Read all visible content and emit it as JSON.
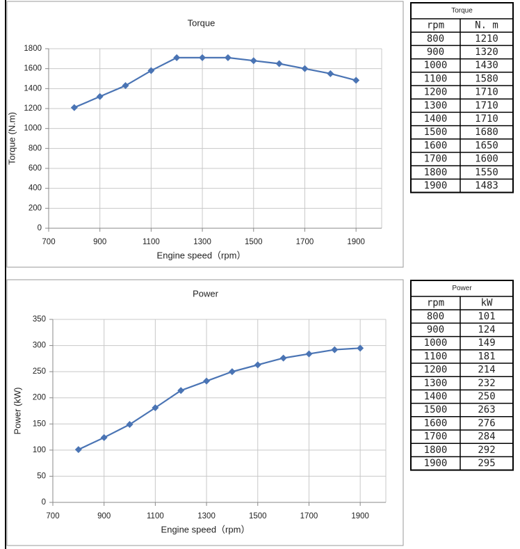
{
  "chart_data": [
    {
      "type": "line",
      "title": "Torque",
      "xlabel": "Engine speed（rpm）",
      "ylabel": "Torque (N.m)",
      "x": [
        800,
        900,
        1000,
        1100,
        1200,
        1300,
        1400,
        1500,
        1600,
        1700,
        1800,
        1900
      ],
      "series": [
        {
          "color": "#4a74b4",
          "values": [
            1210,
            1320,
            1430,
            1580,
            1710,
            1710,
            1710,
            1680,
            1650,
            1600,
            1550,
            1483
          ]
        }
      ],
      "xlim": [
        700,
        2000
      ],
      "xticks": [
        700,
        900,
        1100,
        1300,
        1500,
        1700,
        1900
      ],
      "ylim": [
        0,
        1800
      ],
      "yticks": [
        0,
        200,
        400,
        600,
        800,
        1000,
        1200,
        1400,
        1600,
        1800
      ],
      "grid": true
    },
    {
      "type": "line",
      "title": "Power",
      "xlabel": "Engine speed（rpm）",
      "ylabel": "Power (kW)",
      "x": [
        800,
        900,
        1000,
        1100,
        1200,
        1300,
        1400,
        1500,
        1600,
        1700,
        1800,
        1900
      ],
      "series": [
        {
          "color": "#4a74b4",
          "values": [
            101,
            124,
            149,
            181,
            214,
            232,
            250,
            263,
            276,
            284,
            292,
            295
          ]
        }
      ],
      "xlim": [
        700,
        2000
      ],
      "xticks": [
        700,
        900,
        1100,
        1300,
        1500,
        1700,
        1900
      ],
      "ylim": [
        0,
        350
      ],
      "yticks": [
        0,
        50,
        100,
        150,
        200,
        250,
        300,
        350
      ],
      "grid": true
    }
  ],
  "tables": [
    {
      "title": "Torque",
      "header": [
        "rpm",
        "N. m"
      ],
      "rows": [
        [
          800,
          1210
        ],
        [
          900,
          1320
        ],
        [
          1000,
          1430
        ],
        [
          1100,
          1580
        ],
        [
          1200,
          1710
        ],
        [
          1300,
          1710
        ],
        [
          1400,
          1710
        ],
        [
          1500,
          1680
        ],
        [
          1600,
          1650
        ],
        [
          1700,
          1600
        ],
        [
          1800,
          1550
        ],
        [
          1900,
          1483
        ]
      ]
    },
    {
      "title": "Power",
      "header": [
        "rpm",
        "kW"
      ],
      "rows": [
        [
          800,
          101
        ],
        [
          900,
          124
        ],
        [
          1000,
          149
        ],
        [
          1100,
          181
        ],
        [
          1200,
          214
        ],
        [
          1300,
          232
        ],
        [
          1400,
          250
        ],
        [
          1500,
          263
        ],
        [
          1600,
          276
        ],
        [
          1700,
          284
        ],
        [
          1800,
          292
        ],
        [
          1900,
          295
        ]
      ]
    }
  ]
}
